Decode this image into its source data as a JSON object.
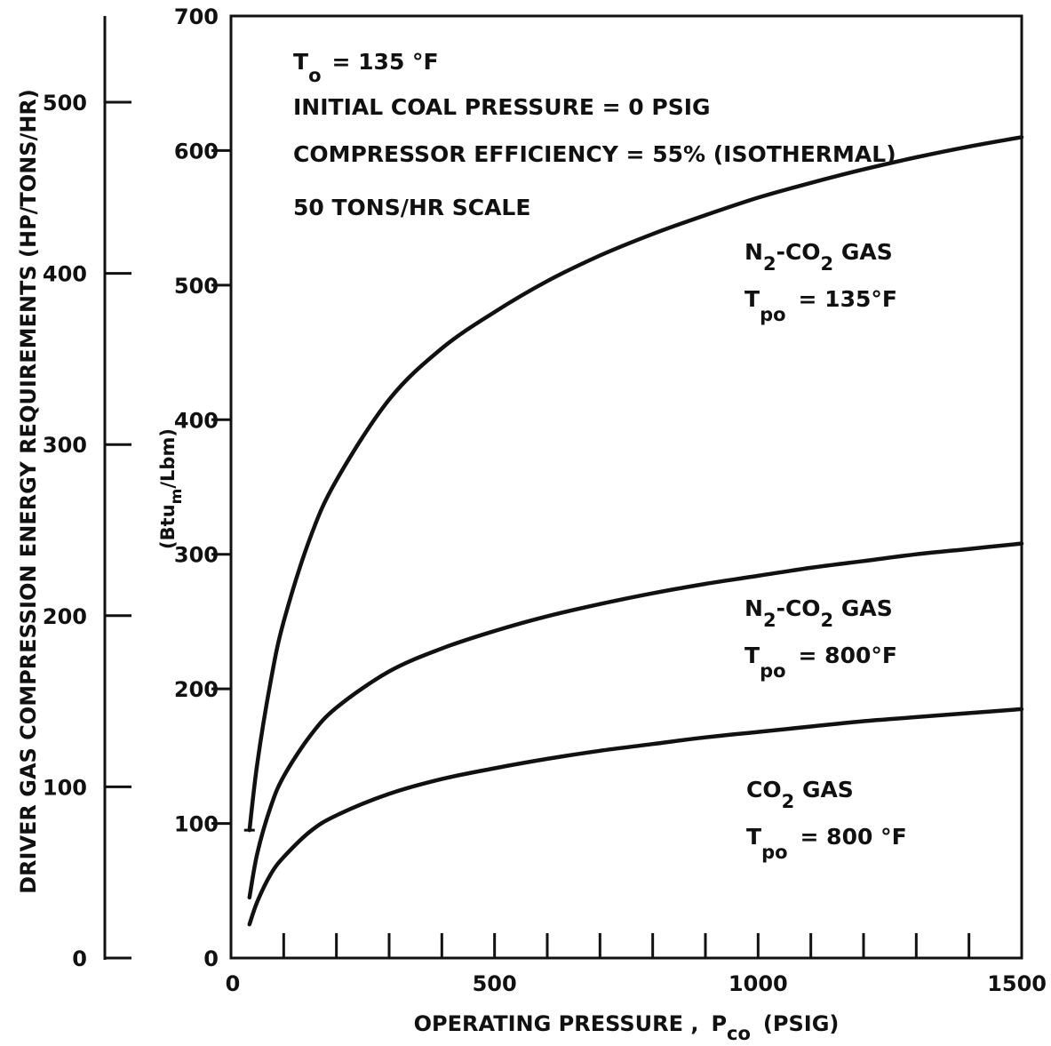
{
  "chart_data": {
    "type": "line",
    "xlabel": {
      "main": "OPERATING PRESSURE ,",
      "sym": "P",
      "sym_sub": "co",
      "unit": "(PSIG)"
    },
    "ylabel_left": "DRIVER GAS COMPRESSION ENERGY REQUIREMENTS (HP/TONS/HR)",
    "ylabel_inner": {
      "a": "(Btu",
      "a_sub": "m",
      "b": "/Lbm)"
    },
    "x_ticks": [
      "0",
      "500",
      "1000",
      "1500"
    ],
    "x_minor": [
      100,
      200,
      300,
      400,
      500,
      600,
      700,
      800,
      900,
      1000,
      1100,
      1200,
      1300,
      1400
    ],
    "xlim": [
      0,
      1500
    ],
    "y_ticks": [
      "0",
      "100",
      "200",
      "300",
      "400",
      "500",
      "600",
      "700"
    ],
    "ylim": [
      0,
      700
    ],
    "left_ticks": [
      "0",
      "100",
      "200",
      "300",
      "400",
      "500"
    ],
    "left_lim": [
      0,
      500
    ],
    "notes": [
      {
        "t": "T",
        "sub": "o",
        "rest": "=  135 °F"
      },
      {
        "t": "INITIAL COAL PRESSURE  =  0 PSIG"
      },
      {
        "t": "COMPRESSOR EFFICIENCY  =  55% (ISOTHERMAL)"
      },
      {
        "t": "50 TONS/HR SCALE"
      }
    ],
    "series": [
      {
        "label": {
          "l1a": "N",
          "l1s": "2",
          "l1b": "-CO",
          "l1s2": "2",
          "l1c": " GAS",
          "t": "T",
          "tsub": "po",
          "rest": "=  135°F"
        },
        "x": [
          35,
          50,
          75,
          100,
          150,
          200,
          300,
          400,
          500,
          600,
          700,
          800,
          900,
          1000,
          1100,
          1200,
          1300,
          1400,
          1500
        ],
        "y": [
          95,
          145,
          205,
          250,
          312,
          355,
          415,
          453,
          480,
          503,
          522,
          538,
          552,
          565,
          576,
          586,
          595,
          603,
          610
        ]
      },
      {
        "label": {
          "l1a": "N",
          "l1s": "2",
          "l1b": "-CO",
          "l1s2": "2",
          "l1c": " GAS",
          "t": "T",
          "tsub": "po",
          "rest": "=  800°F"
        },
        "x": [
          35,
          50,
          75,
          100,
          150,
          200,
          300,
          400,
          500,
          600,
          700,
          800,
          900,
          1000,
          1100,
          1200,
          1300,
          1400,
          1500
        ],
        "y": [
          45,
          78,
          112,
          135,
          165,
          186,
          213,
          230,
          243,
          254,
          263,
          271,
          278,
          284,
          290,
          295,
          300,
          304,
          308
        ]
      },
      {
        "label": {
          "l1a": "CO",
          "l1s": "2",
          "l1b": "",
          "l1s2": "",
          "l1c": " GAS",
          "t": "T",
          "tsub": "po",
          "rest": "=  800 °F"
        },
        "x": [
          35,
          50,
          75,
          100,
          150,
          200,
          300,
          400,
          500,
          600,
          700,
          800,
          900,
          1000,
          1100,
          1200,
          1300,
          1400,
          1500
        ],
        "y": [
          25,
          42,
          62,
          75,
          94,
          106,
          122,
          133,
          141,
          148,
          154,
          159,
          164,
          168,
          172,
          176,
          179,
          182,
          185
        ]
      }
    ]
  }
}
